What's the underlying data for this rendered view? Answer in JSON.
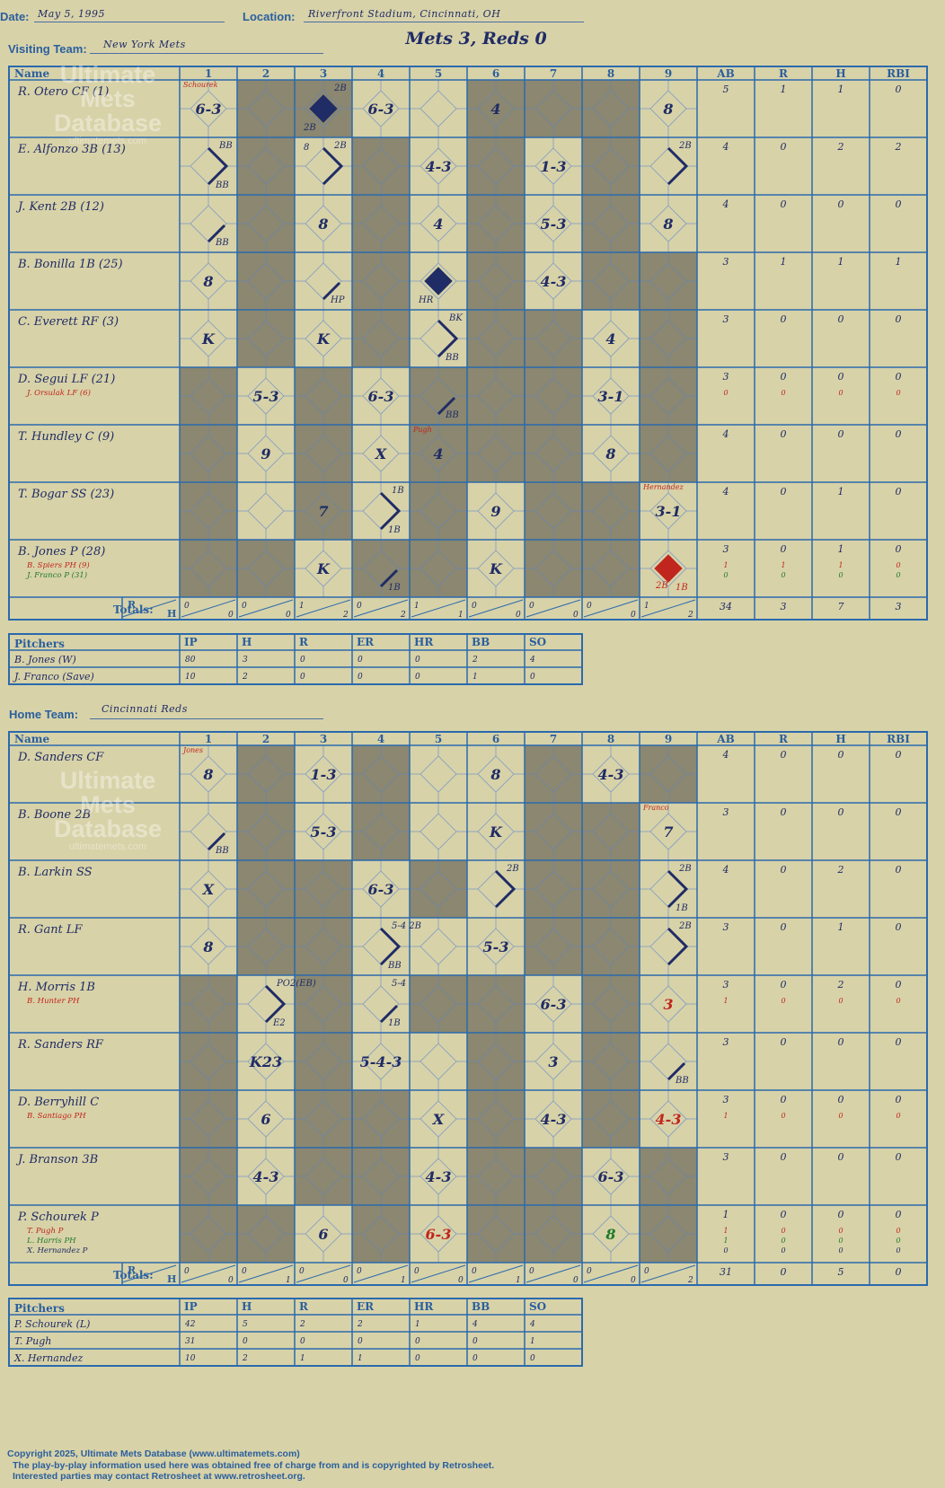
{
  "header": {
    "date_label": "Date:",
    "date": "May 5, 1995",
    "location_label": "Location:",
    "location": "Riverfront Stadium, Cincinnati, OH",
    "visiting_label": "Visiting Team:",
    "visiting_team": "New York Mets",
    "home_label": "Home Team:",
    "home_team": "Cincinnati Reds",
    "game_result": "Mets 3, Reds 0"
  },
  "watermark": {
    "line1": "Ultimate",
    "line2": "Mets",
    "line3": "Database",
    "url": "ultimatemets.com"
  },
  "columns": {
    "name": "Name",
    "innings": [
      "1",
      "2",
      "3",
      "4",
      "5",
      "6",
      "7",
      "8",
      "9"
    ],
    "stats": [
      "AB",
      "R",
      "H",
      "RBI"
    ],
    "totals_label": "Totals:",
    "r_label": "R",
    "h_label": "H"
  },
  "pitcher_columns": {
    "name": "Pitchers",
    "stats": [
      "IP",
      "H",
      "R",
      "ER",
      "HR",
      "BB",
      "SO"
    ]
  },
  "colors": {
    "shade": "#8b8770",
    "line": "#2a6aad",
    "ink": "#1f2c66",
    "sub_red": "#c0261e",
    "sub_green": "#1f7a2a"
  },
  "visiting": {
    "shade": [
      [
        2,
        3,
        6,
        7,
        8
      ],
      [
        2,
        4,
        6,
        8
      ],
      [
        2,
        4,
        6,
        8
      ],
      [
        2,
        4,
        6,
        8,
        9
      ],
      [
        2,
        4,
        6,
        7,
        9
      ],
      [
        1,
        3,
        5,
        6,
        7,
        9
      ],
      [
        1,
        3,
        5,
        6,
        7,
        9
      ],
      [
        1,
        3,
        5,
        7,
        8
      ],
      [
        1,
        2,
        4,
        5,
        7,
        8
      ]
    ],
    "batters": [
      {
        "name": "R. Otero CF (1)",
        "subs": [],
        "stats": [
          "5",
          "1",
          "1",
          "0"
        ],
        "sub_stats": [],
        "cells": [
          {
            "i": 1,
            "t": "6-3",
            "n": "Schourek",
            "nc": "red"
          },
          {
            "i": 3,
            "d": "run",
            "a": "2B",
            "b": "2B"
          },
          {
            "i": 4,
            "t": "6-3"
          },
          {
            "i": 6,
            "t": "4"
          },
          {
            "i": 9,
            "t": "8"
          }
        ]
      },
      {
        "name": "E. Alfonzo 3B (13)",
        "subs": [],
        "stats": [
          "4",
          "0",
          "2",
          "2"
        ],
        "sub_stats": [],
        "cells": [
          {
            "i": 1,
            "d": "p2",
            "a": "BB",
            "c": "BB"
          },
          {
            "i": 3,
            "d": "p2",
            "a": "2B",
            "x": "8"
          },
          {
            "i": 5,
            "t": "4-3"
          },
          {
            "i": 7,
            "t": "1-3"
          },
          {
            "i": 9,
            "d": "p2",
            "a": "2B"
          }
        ]
      },
      {
        "name": "J. Kent 2B (12)",
        "subs": [],
        "stats": [
          "4",
          "0",
          "0",
          "0"
        ],
        "sub_stats": [],
        "cells": [
          {
            "i": 1,
            "d": "p1",
            "c": "BB"
          },
          {
            "i": 3,
            "t": "8"
          },
          {
            "i": 5,
            "t": "4"
          },
          {
            "i": 7,
            "t": "5-3"
          },
          {
            "i": 9,
            "t": "8"
          }
        ]
      },
      {
        "name": "B. Bonilla 1B (25)",
        "subs": [],
        "stats": [
          "3",
          "1",
          "1",
          "1"
        ],
        "sub_stats": [],
        "cells": [
          {
            "i": 1,
            "t": "8"
          },
          {
            "i": 3,
            "d": "p1",
            "c": "HP"
          },
          {
            "i": 5,
            "d": "run",
            "b": "HR"
          },
          {
            "i": 7,
            "t": "4-3"
          }
        ]
      },
      {
        "name": "C. Everett RF (3)",
        "subs": [],
        "stats": [
          "3",
          "0",
          "0",
          "0"
        ],
        "sub_stats": [],
        "cells": [
          {
            "i": 1,
            "t": "K"
          },
          {
            "i": 3,
            "t": "K"
          },
          {
            "i": 5,
            "d": "p2",
            "a": "BK",
            "c": "BB"
          },
          {
            "i": 8,
            "t": "4"
          }
        ]
      },
      {
        "name": "D. Segui LF (21)",
        "subs": [
          {
            "name": "J. Orsulak LF (6)",
            "c": "red"
          }
        ],
        "stats": [
          "3",
          "0",
          "0",
          "0"
        ],
        "sub_stats": [
          [
            "0",
            "0",
            "0",
            "0"
          ]
        ],
        "cells": [
          {
            "i": 2,
            "t": "5-3"
          },
          {
            "i": 4,
            "t": "6-3"
          },
          {
            "i": 5,
            "d": "p1",
            "c": "BB"
          },
          {
            "i": 8,
            "t": "3-1"
          }
        ]
      },
      {
        "name": "T. Hundley C (9)",
        "subs": [],
        "stats": [
          "4",
          "0",
          "0",
          "0"
        ],
        "sub_stats": [],
        "cells": [
          {
            "i": 2,
            "t": "9"
          },
          {
            "i": 4,
            "t": "X"
          },
          {
            "i": 5,
            "t": "4",
            "n": "Pugh",
            "nc": "red"
          },
          {
            "i": 8,
            "t": "8"
          }
        ]
      },
      {
        "name": "T. Bogar SS (23)",
        "subs": [],
        "stats": [
          "4",
          "0",
          "1",
          "0"
        ],
        "sub_stats": [],
        "cells": [
          {
            "i": 3,
            "t": "7"
          },
          {
            "i": 4,
            "d": "p2",
            "a": "1B",
            "c": "1B"
          },
          {
            "i": 6,
            "t": "9"
          },
          {
            "i": 9,
            "t": "3-1",
            "n": "Hernandez",
            "nc": "red"
          }
        ]
      },
      {
        "name": "B. Jones P (28)",
        "subs": [
          {
            "name": "B. Spiers PH (9)",
            "c": "red"
          },
          {
            "name": "J. Franco P (31)",
            "c": "green"
          }
        ],
        "stats": [
          "3",
          "0",
          "1",
          "0"
        ],
        "sub_stats": [
          [
            "1",
            "1",
            "1",
            "0"
          ],
          [
            "0",
            "0",
            "0",
            "0"
          ]
        ],
        "cells": [
          {
            "i": 3,
            "t": "K"
          },
          {
            "i": 4,
            "d": "p1",
            "c": "1B"
          },
          {
            "i": 6,
            "t": "K"
          },
          {
            "i": 9,
            "d": "run",
            "col": "red",
            "a2": "2B",
            "c": "1B"
          }
        ]
      }
    ],
    "totals": [
      [
        "0",
        "0"
      ],
      [
        "0",
        "0"
      ],
      [
        "1",
        "2"
      ],
      [
        "0",
        "2"
      ],
      [
        "1",
        "1"
      ],
      [
        "0",
        "0"
      ],
      [
        "0",
        "0"
      ],
      [
        "0",
        "0"
      ],
      [
        "1",
        "2"
      ]
    ],
    "total_stats": [
      "34",
      "3",
      "7",
      "3"
    ],
    "pitchers": [
      {
        "name": "B. Jones (W)",
        "stats": [
          "80",
          "3",
          "0",
          "0",
          "0",
          "2",
          "4"
        ]
      },
      {
        "name": "J. Franco (Save)",
        "stats": [
          "10",
          "2",
          "0",
          "0",
          "0",
          "1",
          "0"
        ]
      }
    ]
  },
  "home": {
    "shade": [
      [
        2,
        4,
        7,
        9
      ],
      [
        2,
        4,
        7,
        8
      ],
      [
        2,
        3,
        5,
        7,
        8
      ],
      [
        2,
        3,
        7,
        8
      ],
      [
        1,
        3,
        5,
        6,
        8
      ],
      [
        1,
        3,
        6,
        8
      ],
      [
        1,
        3,
        4,
        6,
        8
      ],
      [
        1,
        3,
        4,
        6,
        7,
        9
      ],
      [
        1,
        2,
        4,
        6,
        7,
        9
      ]
    ],
    "batters": [
      {
        "name": "D. Sanders CF",
        "subs": [],
        "stats": [
          "4",
          "0",
          "0",
          "0"
        ],
        "sub_stats": [],
        "cells": [
          {
            "i": 1,
            "t": "8",
            "n": "Jones",
            "nc": "red"
          },
          {
            "i": 3,
            "t": "1-3"
          },
          {
            "i": 6,
            "t": "8"
          },
          {
            "i": 8,
            "t": "4-3"
          }
        ]
      },
      {
        "name": "B. Boone 2B",
        "subs": [],
        "stats": [
          "3",
          "0",
          "0",
          "0"
        ],
        "sub_stats": [],
        "cells": [
          {
            "i": 1,
            "d": "p1",
            "c": "BB"
          },
          {
            "i": 3,
            "t": "5-3"
          },
          {
            "i": 6,
            "t": "K"
          },
          {
            "i": 9,
            "t": "7",
            "n": "Franco",
            "nc": "red"
          }
        ]
      },
      {
        "name": "B. Larkin SS",
        "subs": [],
        "stats": [
          "4",
          "0",
          "2",
          "0"
        ],
        "sub_stats": [],
        "cells": [
          {
            "i": 1,
            "t": "X"
          },
          {
            "i": 4,
            "t": "6-3"
          },
          {
            "i": 6,
            "d": "p2",
            "a": "2B"
          },
          {
            "i": 9,
            "d": "p2",
            "a": "2B",
            "c": "1B"
          }
        ]
      },
      {
        "name": "R. Gant LF",
        "subs": [],
        "stats": [
          "3",
          "0",
          "1",
          "0"
        ],
        "sub_stats": [],
        "cells": [
          {
            "i": 1,
            "t": "8"
          },
          {
            "i": 4,
            "d": "p2",
            "a": "5-4 2B",
            "c": "BB"
          },
          {
            "i": 6,
            "t": "5-3"
          },
          {
            "i": 9,
            "d": "p2",
            "a": "2B"
          }
        ]
      },
      {
        "name": "H. Morris 1B",
        "subs": [
          {
            "name": "B. Hunter PH",
            "c": "red"
          }
        ],
        "stats": [
          "3",
          "0",
          "2",
          "0"
        ],
        "sub_stats": [
          [
            "1",
            "0",
            "0",
            "0"
          ]
        ],
        "cells": [
          {
            "i": 2,
            "d": "p2",
            "a": "PO2(EB)",
            "c": "E2"
          },
          {
            "i": 4,
            "d": "p1",
            "a": "5-4",
            "c": "1B"
          },
          {
            "i": 7,
            "t": "6-3"
          },
          {
            "i": 9,
            "t": "3",
            "col": "red"
          }
        ]
      },
      {
        "name": "R. Sanders RF",
        "subs": [],
        "stats": [
          "3",
          "0",
          "0",
          "0"
        ],
        "sub_stats": [],
        "cells": [
          {
            "i": 2,
            "t": "K23"
          },
          {
            "i": 4,
            "t": "5-4-3"
          },
          {
            "i": 7,
            "t": "3"
          },
          {
            "i": 9,
            "d": "p1",
            "c": "BB"
          }
        ]
      },
      {
        "name": "D. Berryhill C",
        "subs": [
          {
            "name": "B. Santiago PH",
            "c": "red"
          }
        ],
        "stats": [
          "3",
          "0",
          "0",
          "0"
        ],
        "sub_stats": [
          [
            "1",
            "0",
            "0",
            "0"
          ]
        ],
        "cells": [
          {
            "i": 2,
            "t": "6"
          },
          {
            "i": 5,
            "t": "X"
          },
          {
            "i": 7,
            "t": "4-3"
          },
          {
            "i": 9,
            "t": "4-3",
            "col": "red"
          }
        ]
      },
      {
        "name": "J. Branson 3B",
        "subs": [],
        "stats": [
          "3",
          "0",
          "0",
          "0"
        ],
        "sub_stats": [],
        "cells": [
          {
            "i": 2,
            "t": "4-3"
          },
          {
            "i": 5,
            "t": "4-3"
          },
          {
            "i": 8,
            "t": "6-3"
          }
        ]
      },
      {
        "name": "P. Schourek P",
        "subs": [
          {
            "name": "T. Pugh P",
            "c": "red"
          },
          {
            "name": "L. Harris PH",
            "c": "green"
          },
          {
            "name": "X. Hernandez P",
            "c": "ink"
          }
        ],
        "stats": [
          "1",
          "0",
          "0",
          "0"
        ],
        "sub_stats": [
          [
            "1",
            "0",
            "0",
            "0"
          ],
          [
            "1",
            "0",
            "0",
            "0"
          ],
          [
            "0",
            "0",
            "0",
            "0"
          ]
        ],
        "cells": [
          {
            "i": 3,
            "t": "6"
          },
          {
            "i": 5,
            "t": "6-3",
            "col": "red"
          },
          {
            "i": 8,
            "t": "8",
            "col": "green"
          }
        ]
      }
    ],
    "totals": [
      [
        "0",
        "0"
      ],
      [
        "0",
        "1"
      ],
      [
        "0",
        "0"
      ],
      [
        "0",
        "1"
      ],
      [
        "0",
        "0"
      ],
      [
        "0",
        "1"
      ],
      [
        "0",
        "0"
      ],
      [
        "0",
        "0"
      ],
      [
        "0",
        "2"
      ]
    ],
    "total_stats": [
      "31",
      "0",
      "5",
      "0"
    ],
    "pitchers": [
      {
        "name": "P. Schourek (L)",
        "stats": [
          "42",
          "5",
          "2",
          "2",
          "1",
          "4",
          "4"
        ]
      },
      {
        "name": "T. Pugh",
        "stats": [
          "31",
          "0",
          "0",
          "0",
          "0",
          "0",
          "1"
        ]
      },
      {
        "name": "X. Hernandez",
        "stats": [
          "10",
          "2",
          "1",
          "1",
          "0",
          "0",
          "0"
        ]
      }
    ]
  },
  "footer": {
    "copyright": "Copyright 2025, Ultimate Mets Database (www.ultimatemets.com)",
    "line2": "The play-by-play information used here was obtained free of charge from and is copyrighted by Retrosheet.",
    "line3": "Interested parties may contact Retrosheet at www.retrosheet.org."
  }
}
